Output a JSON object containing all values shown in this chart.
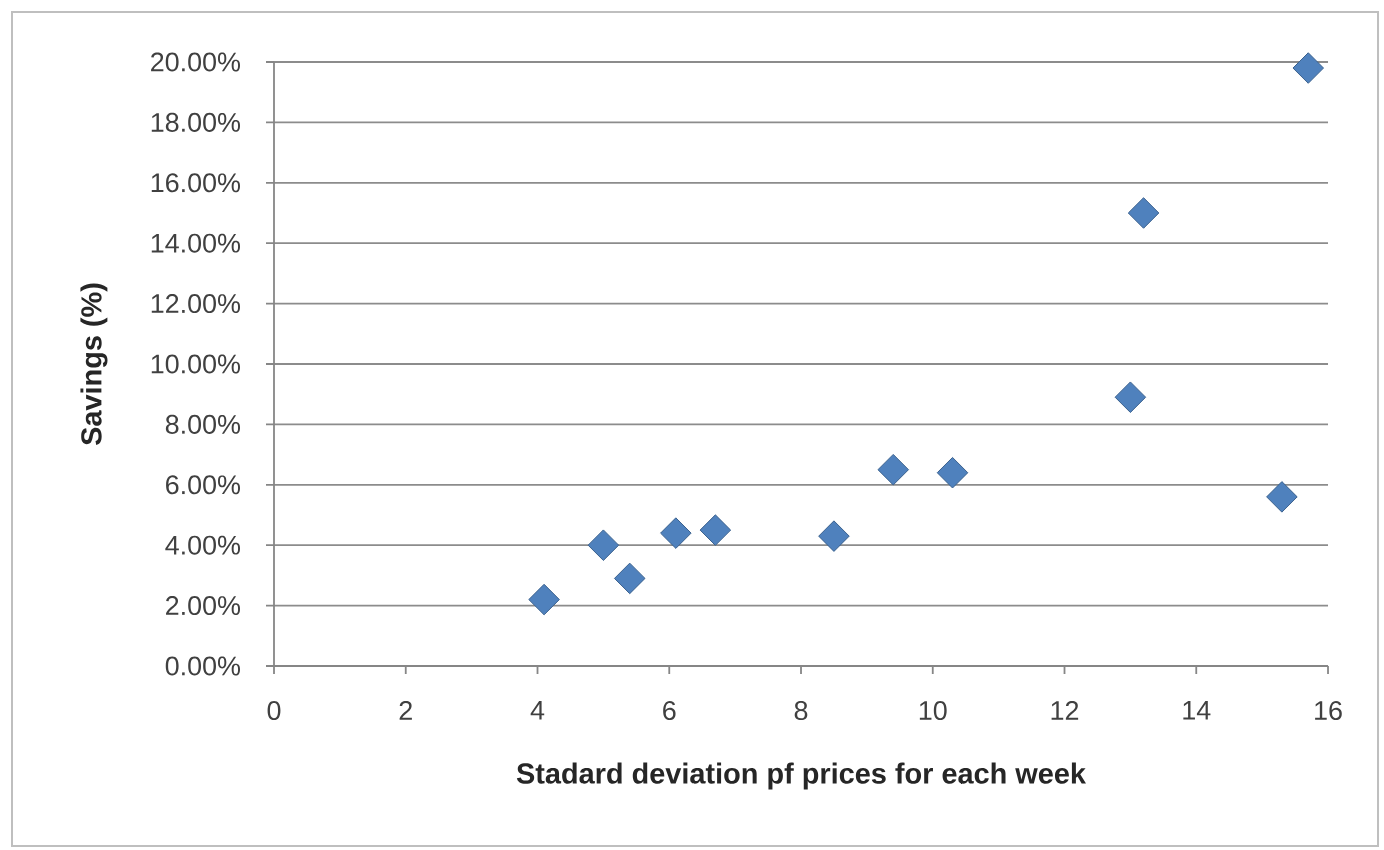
{
  "chart_data": {
    "type": "scatter",
    "xlabel": "Stadard deviation pf prices for each week",
    "ylabel": "Savings (%)",
    "x": [
      4.1,
      5.0,
      5.4,
      6.1,
      6.7,
      8.5,
      9.4,
      10.3,
      13.0,
      13.2,
      15.3,
      15.7
    ],
    "values": [
      2.2,
      4.0,
      2.9,
      4.4,
      4.5,
      4.3,
      6.5,
      6.4,
      8.9,
      15.0,
      5.6,
      19.8
    ],
    "color": "#4f81bd",
    "marker": "diamond",
    "grid": "y",
    "xlim": [
      0,
      16
    ],
    "xticks": [
      0,
      2,
      4,
      6,
      8,
      10,
      12,
      14,
      16
    ],
    "ylim": [
      0,
      20
    ],
    "yticks": [
      {
        "value": 0,
        "label": "0.00%"
      },
      {
        "value": 2,
        "label": "2.00%"
      },
      {
        "value": 4,
        "label": "4.00%"
      },
      {
        "value": 6,
        "label": "6.00%"
      },
      {
        "value": 8,
        "label": "8.00%"
      },
      {
        "value": 10,
        "label": "10.00%"
      },
      {
        "value": 12,
        "label": "12.00%"
      },
      {
        "value": 14,
        "label": "14.00%"
      },
      {
        "value": 16,
        "label": "16.00%"
      },
      {
        "value": 18,
        "label": "18.00%"
      },
      {
        "value": 20,
        "label": "20.00%"
      }
    ]
  }
}
